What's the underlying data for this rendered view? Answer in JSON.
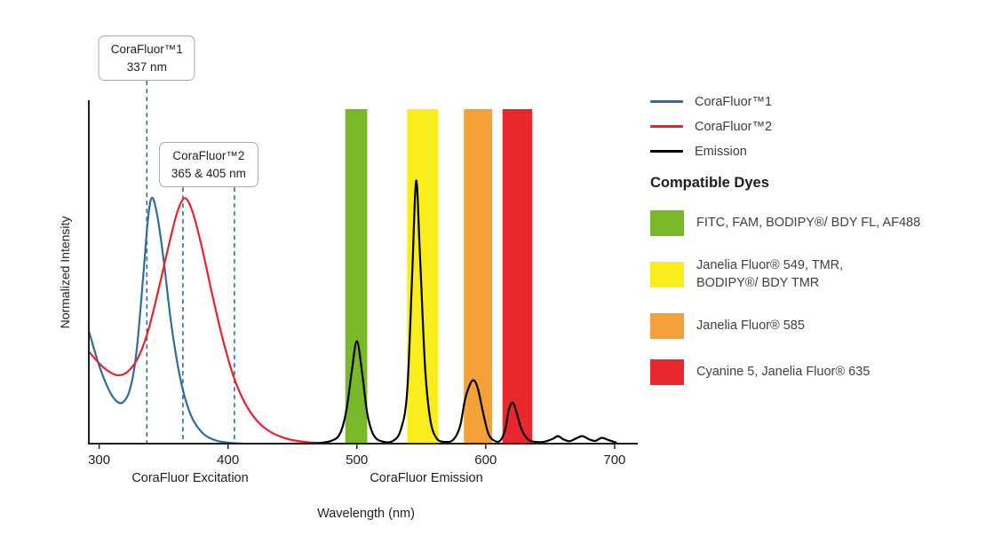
{
  "chart_data": {
    "type": "line",
    "xlabel": "Wavelength (nm)",
    "ylabel": "Normalized Intensity",
    "xlim": [
      292,
      718
    ],
    "ylim": [
      0,
      1
    ],
    "x_ticks": [
      300,
      400,
      500,
      600,
      700
    ],
    "grid": false,
    "axis_region_labels": [
      {
        "label": "CoraFluor Excitation"
      },
      {
        "label": "CoraFluor Emission"
      }
    ],
    "annotation_line_color": "#2d6da3",
    "annotations": [
      {
        "title": "CoraFluor™1",
        "subtitle": "337 nm",
        "lines_nm": [
          337
        ]
      },
      {
        "title": "CoraFluor™2",
        "subtitle": "365 & 405 nm",
        "lines_nm": [
          365,
          405
        ]
      }
    ],
    "filter_bands": [
      {
        "id": "green",
        "color": "#79b829",
        "from_nm": 491,
        "to_nm": 508
      },
      {
        "id": "yellow",
        "color": "#f9ed1c",
        "from_nm": 539,
        "to_nm": 563
      },
      {
        "id": "orange",
        "color": "#f4a139",
        "from_nm": 583,
        "to_nm": 605
      },
      {
        "id": "red",
        "color": "#e9282d",
        "from_nm": 613,
        "to_nm": 636
      }
    ],
    "series": [
      {
        "name": "CoraFluor™1",
        "color": "#2d6da3",
        "x": [
          292,
          299,
          306,
          312,
          318,
          324,
          329,
          334,
          338,
          341,
          345,
          350,
          356,
          363,
          371,
          380,
          390,
          400,
          412
        ],
        "y": [
          0.33,
          0.24,
          0.17,
          0.13,
          0.12,
          0.16,
          0.27,
          0.48,
          0.66,
          0.72,
          0.67,
          0.54,
          0.35,
          0.19,
          0.085,
          0.032,
          0.01,
          0.003,
          0.0
        ]
      },
      {
        "name": "CoraFluor™2",
        "color": "#ec2227",
        "x": [
          292,
          300,
          308,
          315,
          322,
          330,
          338,
          346,
          354,
          360,
          365,
          369,
          374,
          380,
          387,
          395,
          404,
          413,
          423,
          434,
          447,
          462,
          480
        ],
        "y": [
          0.27,
          0.235,
          0.21,
          0.2,
          0.21,
          0.25,
          0.33,
          0.45,
          0.58,
          0.67,
          0.715,
          0.71,
          0.66,
          0.57,
          0.45,
          0.32,
          0.2,
          0.12,
          0.065,
          0.032,
          0.013,
          0.004,
          0.0
        ]
      },
      {
        "name": "Emission",
        "color": "#000000",
        "x": [
          450,
          468,
          480,
          487,
          492,
          496,
          500,
          504,
          508,
          513,
          520,
          528,
          534,
          539,
          543,
          546,
          549,
          553,
          557,
          562,
          569,
          575,
          580,
          584,
          588,
          591,
          594,
          598,
          602,
          606,
          611,
          615,
          618,
          621,
          624,
          628,
          633,
          639,
          646,
          652,
          656,
          660,
          665,
          670,
          675,
          680,
          685,
          690,
          695,
          701
        ],
        "y": [
          0.0,
          0.001,
          0.008,
          0.03,
          0.1,
          0.21,
          0.3,
          0.21,
          0.09,
          0.025,
          0.006,
          0.008,
          0.04,
          0.15,
          0.5,
          0.77,
          0.55,
          0.22,
          0.07,
          0.015,
          0.005,
          0.012,
          0.05,
          0.13,
          0.175,
          0.185,
          0.16,
          0.09,
          0.03,
          0.01,
          0.008,
          0.04,
          0.1,
          0.12,
          0.09,
          0.04,
          0.012,
          0.005,
          0.006,
          0.014,
          0.022,
          0.013,
          0.007,
          0.015,
          0.022,
          0.013,
          0.008,
          0.017,
          0.011,
          0.003
        ]
      }
    ]
  },
  "legend": {
    "items": [
      {
        "label": "CoraFluor™1",
        "color": "#2d6da3"
      },
      {
        "label": "CoraFluor™2",
        "color": "#ec2227"
      },
      {
        "label": "Emission",
        "color": "#000000"
      }
    ]
  },
  "dye_panel": {
    "heading": "Compatible Dyes",
    "items": [
      {
        "color": "#79b829",
        "label": "FITC, FAM, BODIPY®/ BDY FL, AF488"
      },
      {
        "color": "#f9ed1c",
        "label": "Janelia Fluor® 549, TMR,\nBODIPY®/ BDY TMR"
      },
      {
        "color": "#f4a139",
        "label": "Janelia Fluor® 585"
      },
      {
        "color": "#e9282d",
        "label": "Cyanine 5, Janelia Fluor® 635"
      }
    ]
  }
}
